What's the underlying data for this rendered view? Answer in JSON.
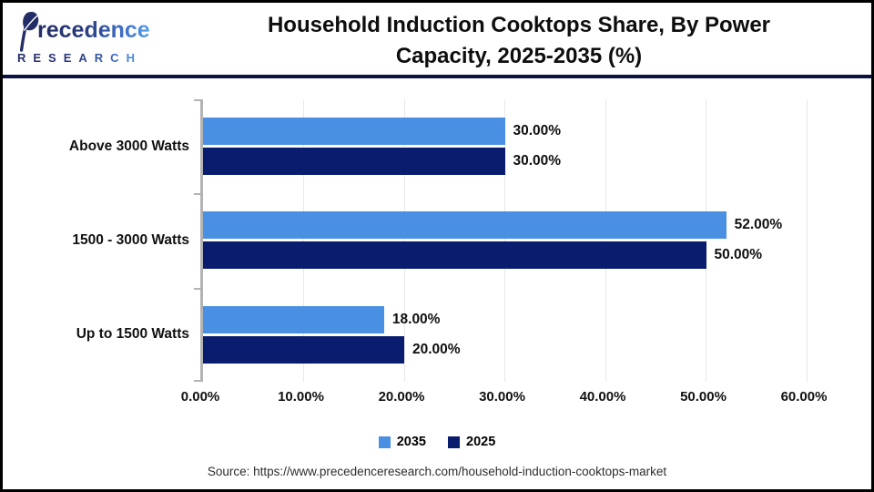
{
  "header": {
    "logo": {
      "brand": "Precedence",
      "brand_rest": "recedence",
      "subtitle": "RESEARCH"
    },
    "title_line1": "Household Induction Cooktops Share, By Power",
    "title_line2": "Capacity, 2025-2035 (%)"
  },
  "colors": {
    "series_2035": "#4a90e2",
    "series_2025": "#0a1c6e",
    "header_rule": "#0d1245",
    "axis": "#b3b3b3",
    "gridline": "#e8e8e8",
    "page_border": "#000000"
  },
  "chart_data": {
    "type": "bar",
    "orientation": "horizontal",
    "title": "Household Induction Cooktops Share, By Power Capacity, 2025-2035 (%)",
    "categories": [
      "Above 3000 Watts",
      "1500 - 3000 Watts",
      "Up to 1500 Watts"
    ],
    "series": [
      {
        "name": "2035",
        "color": "#4a90e2",
        "values": [
          30,
          52,
          18
        ],
        "labels": [
          "30.00%",
          "52.00%",
          "18.00%"
        ]
      },
      {
        "name": "2025",
        "color": "#0a1c6e",
        "values": [
          30,
          50,
          20
        ],
        "labels": [
          "30.00%",
          "50.00%",
          "20.00%"
        ]
      }
    ],
    "xlim": [
      0,
      60
    ],
    "x_ticks": [
      {
        "value": 0,
        "label": "0.00%"
      },
      {
        "value": 10,
        "label": "10.00%"
      },
      {
        "value": 20,
        "label": "20.00%"
      },
      {
        "value": 30,
        "label": "30.00%"
      },
      {
        "value": 40,
        "label": "40.00%"
      },
      {
        "value": 50,
        "label": "50.00%"
      },
      {
        "value": 60,
        "label": "60.00%"
      }
    ],
    "grid": true,
    "legend_position": "bottom"
  },
  "footer": {
    "source": "Source: https://www.precedenceresearch.com/household-induction-cooktops-market"
  }
}
